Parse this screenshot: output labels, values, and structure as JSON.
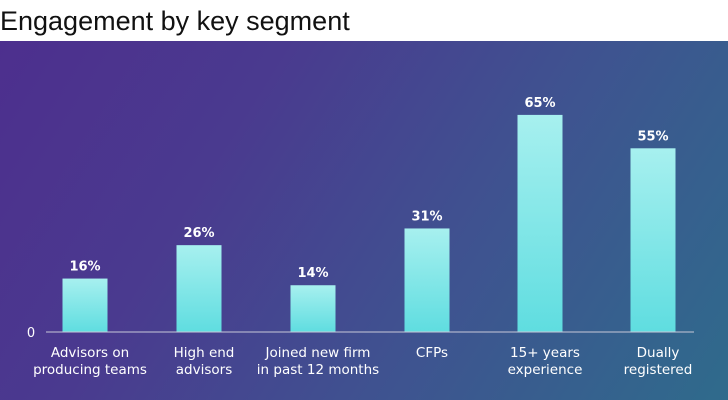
{
  "page": {
    "title": "Engagement by key segment"
  },
  "chart_data": {
    "type": "bar",
    "title": "Engagement by key segment",
    "categories": [
      [
        "Advisors on",
        "producing teams"
      ],
      [
        "High end",
        "advisors"
      ],
      [
        "Joined new firm",
        "in past 12 months"
      ],
      [
        "CFPs"
      ],
      [
        "15+ years",
        "experience"
      ],
      [
        "Dually",
        "registered"
      ]
    ],
    "values": [
      16,
      26,
      14,
      31,
      65,
      55
    ],
    "value_labels": [
      "16%",
      "26%",
      "14%",
      "31%",
      "65%",
      "55%"
    ],
    "y_tick_label": "0",
    "ylim": [
      0,
      70
    ],
    "xlabel": "",
    "ylabel": "",
    "grid": false,
    "colors": {
      "bar_top": "#a7f0ef",
      "bar_bottom": "#5fdde0",
      "axis": "#c8c8d8",
      "text": "#ffffff"
    }
  }
}
